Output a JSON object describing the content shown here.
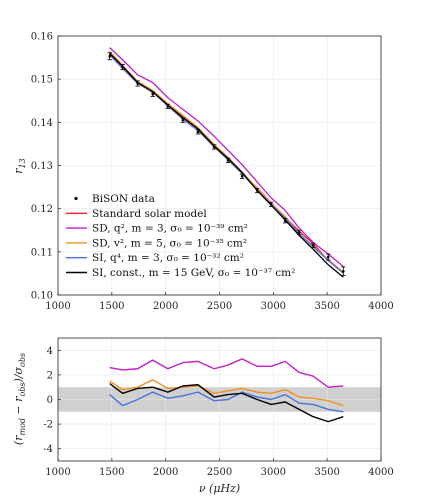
{
  "chart_data": [
    {
      "type": "line",
      "xlabel": "",
      "ylabel": "r13",
      "ylabel_base": "r",
      "ylabel_sub": "13",
      "xlim": [
        1000,
        4000
      ],
      "ylim": [
        0.1,
        0.16
      ],
      "xticks": [
        1000,
        1500,
        2000,
        2500,
        3000,
        3500,
        4000
      ],
      "yticks": [
        0.1,
        0.11,
        0.12,
        0.13,
        0.14,
        0.15,
        0.16
      ],
      "grid": true,
      "legend_position": "bottom-left",
      "x": [
        1480,
        1600,
        1740,
        1880,
        2020,
        2160,
        2300,
        2450,
        2580,
        2710,
        2850,
        2980,
        3110,
        3240,
        3370,
        3510,
        3650
      ],
      "series": [
        {
          "name": "BiSON data",
          "kind": "errorbar",
          "color": "#000000",
          "values": [
            0.1553,
            0.1528,
            0.149,
            0.1465,
            0.1437,
            0.1405,
            0.1378,
            0.1343,
            0.1312,
            0.1275,
            0.1242,
            0.121,
            0.1172,
            0.1145,
            0.1115,
            0.1088,
            0.1055
          ],
          "errors": [
            0.0008,
            0.0006,
            0.0006,
            0.0005,
            0.0005,
            0.0005,
            0.0005,
            0.0005,
            0.0005,
            0.0005,
            0.0005,
            0.0005,
            0.0005,
            0.0005,
            0.0005,
            0.0007,
            0.001
          ]
        },
        {
          "name": "Standard solar model",
          "color": "#e8212a",
          "values": [
            0.1558,
            0.153,
            0.149,
            0.147,
            0.144,
            0.1414,
            0.1386,
            0.1349,
            0.1317,
            0.1282,
            0.1248,
            0.1213,
            0.118,
            0.1148,
            0.1119,
            0.108,
            0.1053
          ]
        },
        {
          "name": "SD, q², m = 3, σ₀ = 10⁻³⁹ cm²",
          "color": "#c21ec9",
          "values": [
            0.1573,
            0.1545,
            0.151,
            0.1492,
            0.1457,
            0.143,
            0.1403,
            0.1368,
            0.1335,
            0.1302,
            0.1262,
            0.1225,
            0.1196,
            0.1155,
            0.1122,
            0.1095,
            0.1066
          ]
        },
        {
          "name": "SD, v², m = 5, σ₀ = 10⁻³⁵ cm²",
          "color": "#f0921e",
          "values": [
            0.1564,
            0.1532,
            0.1495,
            0.1474,
            0.1443,
            0.1416,
            0.1388,
            0.1349,
            0.1319,
            0.1285,
            0.1247,
            0.1212,
            0.1182,
            0.1142,
            0.1113,
            0.1082,
            0.1053
          ]
        },
        {
          "name": "SI, q⁴, m = 3, σ₀ = 10⁻³² cm²",
          "color": "#4a72d8",
          "values": [
            0.1556,
            0.1525,
            0.149,
            0.147,
            0.1438,
            0.1407,
            0.1381,
            0.1343,
            0.1313,
            0.1281,
            0.1243,
            0.121,
            0.1178,
            0.1142,
            0.1112,
            0.108,
            0.105
          ]
        },
        {
          "name": "SI, const., m = 15 GeV, σ₀ = 10⁻³⁷ cm²",
          "color": "#000000",
          "values": [
            0.156,
            0.153,
            0.1492,
            0.1471,
            0.144,
            0.1411,
            0.1385,
            0.1345,
            0.1316,
            0.1284,
            0.1242,
            0.1208,
            0.1174,
            0.1138,
            0.1106,
            0.107,
            0.1041
          ]
        }
      ]
    },
    {
      "type": "line",
      "xlabel": "ν (μHz)",
      "ylabel": "(rmod − robs)/σobs",
      "xlim": [
        1000,
        4000
      ],
      "ylim": [
        -5,
        5
      ],
      "xticks": [
        1000,
        1500,
        2000,
        2500,
        3000,
        3500,
        4000
      ],
      "yticks": [
        -4,
        -2,
        0,
        2,
        4
      ],
      "grid": true,
      "shaded_band": [
        -1,
        1
      ],
      "shaded_color": "#d0d0d0",
      "x": [
        1480,
        1600,
        1740,
        1880,
        2020,
        2160,
        2300,
        2450,
        2580,
        2710,
        2850,
        2980,
        3110,
        3240,
        3370,
        3510,
        3650
      ],
      "series": [
        {
          "name": "SD q²",
          "color": "#c21ec9",
          "values": [
            2.6,
            2.4,
            2.5,
            3.2,
            2.5,
            3.0,
            3.1,
            2.5,
            2.8,
            3.3,
            2.7,
            2.7,
            3.1,
            2.2,
            1.9,
            1.0,
            1.1
          ]
        },
        {
          "name": "SD v²",
          "color": "#f0921e",
          "values": [
            1.5,
            0.8,
            1.0,
            1.6,
            0.9,
            1.0,
            1.1,
            0.5,
            0.7,
            0.9,
            0.6,
            0.5,
            0.8,
            0.2,
            0.1,
            -0.1,
            -0.5
          ]
        },
        {
          "name": "SI q⁴",
          "color": "#4a72d8",
          "values": [
            0.4,
            -0.5,
            0.0,
            0.6,
            0.1,
            0.3,
            0.6,
            -0.1,
            0.0,
            0.6,
            0.2,
            0.0,
            0.4,
            -0.3,
            -0.4,
            -0.8,
            -1.0
          ]
        },
        {
          "name": "SI const.",
          "color": "#000000",
          "values": [
            1.3,
            0.5,
            0.9,
            1.0,
            0.6,
            1.1,
            1.2,
            0.2,
            0.4,
            0.5,
            0.0,
            -0.4,
            -0.2,
            -0.8,
            -1.4,
            -1.8,
            -1.4
          ]
        }
      ]
    }
  ]
}
